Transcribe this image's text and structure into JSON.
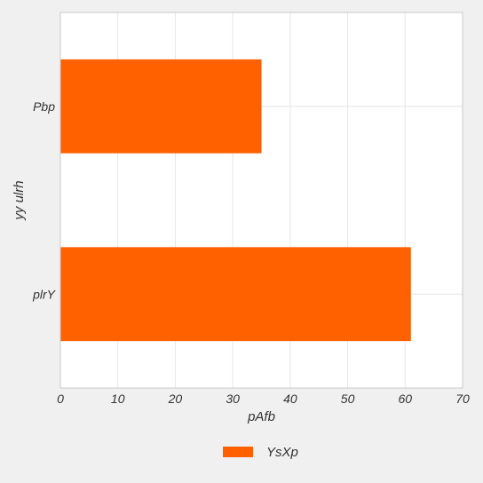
{
  "chart_data": {
    "type": "bar",
    "orientation": "horizontal",
    "categories": [
      "plrY",
      "Pbp"
    ],
    "series": [
      {
        "name": "YsXp",
        "values": [
          61,
          35
        ],
        "color": "#ff6000"
      }
    ],
    "xlabel": "pAfb",
    "ylabel": "yy ulrh",
    "xlim": [
      0,
      70
    ],
    "xticks": [
      0,
      10,
      20,
      30,
      40,
      50,
      60,
      70
    ],
    "grid": true,
    "legend_position": "bottom-center"
  }
}
